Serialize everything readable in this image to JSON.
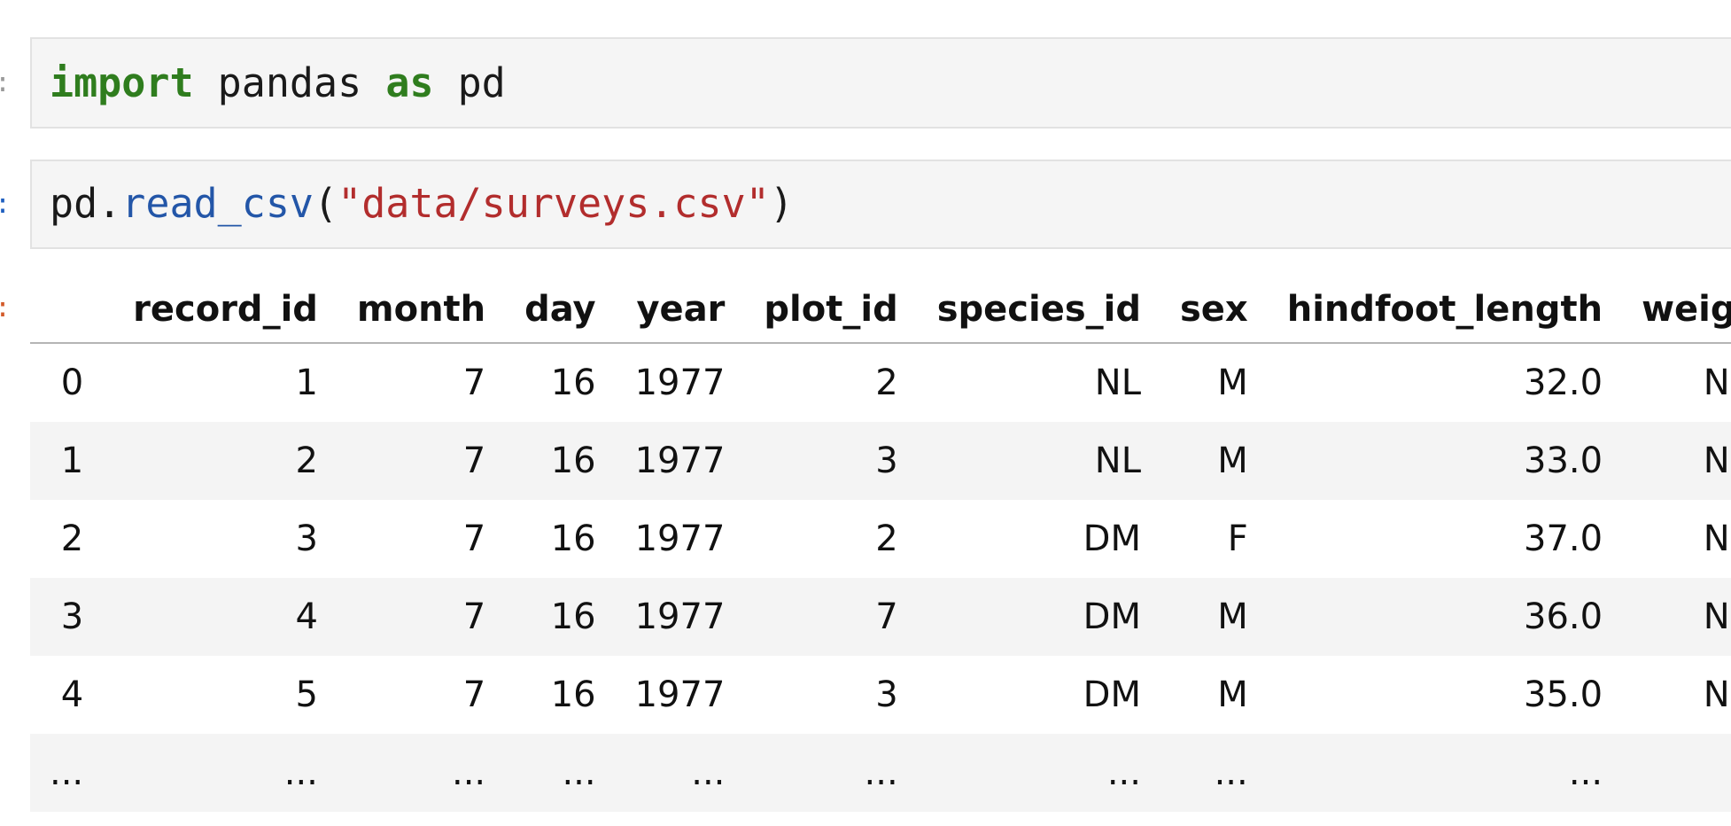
{
  "cells": [
    {
      "prompt": ":",
      "code": {
        "keyword_import": "import",
        "module": " pandas ",
        "keyword_as": "as",
        "alias": " pd"
      }
    },
    {
      "prompt": ":",
      "code": {
        "object": "pd.",
        "function": "read_csv",
        "open_paren": "(",
        "argument": "\"data/surveys.csv\"",
        "close_paren": ")"
      }
    }
  ],
  "output": {
    "prompt": ":",
    "table": {
      "columns": [
        "",
        "record_id",
        "month",
        "day",
        "year",
        "plot_id",
        "species_id",
        "sex",
        "hindfoot_length",
        "weight"
      ],
      "rows": [
        [
          "0",
          "1",
          "7",
          "16",
          "1977",
          "2",
          "NL",
          "M",
          "32.0",
          "NaN"
        ],
        [
          "1",
          "2",
          "7",
          "16",
          "1977",
          "3",
          "NL",
          "M",
          "33.0",
          "NaN"
        ],
        [
          "2",
          "3",
          "7",
          "16",
          "1977",
          "2",
          "DM",
          "F",
          "37.0",
          "NaN"
        ],
        [
          "3",
          "4",
          "7",
          "16",
          "1977",
          "7",
          "DM",
          "M",
          "36.0",
          "NaN"
        ],
        [
          "4",
          "5",
          "7",
          "16",
          "1977",
          "3",
          "DM",
          "M",
          "35.0",
          "NaN"
        ],
        [
          "...",
          "...",
          "...",
          "...",
          "...",
          "...",
          "...",
          "...",
          "...",
          "..."
        ]
      ]
    }
  },
  "colors": {
    "keyword": "#2f7d1e",
    "function": "#2356a8",
    "string": "#b22d2d",
    "cell_background": "#f5f5f5",
    "zebra_row": "#f4f4f4"
  }
}
